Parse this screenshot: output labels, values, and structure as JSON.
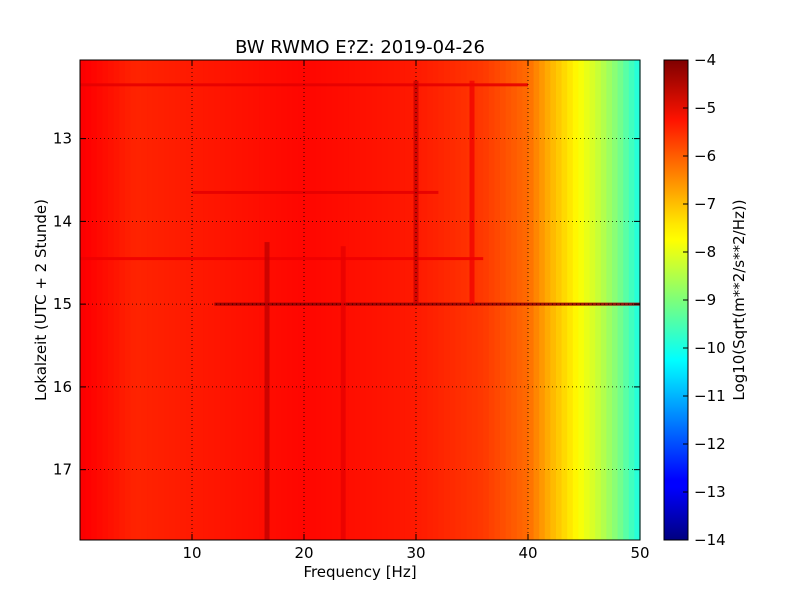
{
  "chart_data": {
    "type": "heatmap",
    "title": "BW RWMO E?Z: 2019-04-26",
    "xlabel": "Frequency [Hz]",
    "ylabel": "Lokalzeit (UTC + 2 Stunde)",
    "colorbar_label": "Log10(Sqrt(m**2/s**2/Hz))",
    "colormap": "jet",
    "xlim": [
      0,
      50
    ],
    "ylim": [
      17.85,
      12.05
    ],
    "clim": [
      -14,
      -4
    ],
    "x_ticks": [
      10,
      20,
      30,
      40,
      50
    ],
    "x_tick_labels": [
      "10",
      "20",
      "30",
      "40",
      "50"
    ],
    "y_ticks": [
      13,
      14,
      15,
      16,
      17
    ],
    "y_tick_labels": [
      "13",
      "14",
      "15",
      "16",
      "17"
    ],
    "colorbar_ticks": [
      -4,
      -5,
      -6,
      -7,
      -8,
      -9,
      -10,
      -11,
      -12,
      -13,
      -14
    ],
    "colorbar_tick_labels": [
      "−4",
      "−5",
      "−6",
      "−7",
      "−8",
      "−9",
      "−10",
      "−11",
      "−12",
      "−13",
      "−14"
    ],
    "grid": true,
    "spectrum_profile": [
      {
        "f": 0,
        "v": -5.2
      },
      {
        "f": 5,
        "v": -5.6
      },
      {
        "f": 10,
        "v": -5.5
      },
      {
        "f": 20,
        "v": -5.3
      },
      {
        "f": 30,
        "v": -5.5
      },
      {
        "f": 36,
        "v": -5.8
      },
      {
        "f": 40,
        "v": -6.3
      },
      {
        "f": 42,
        "v": -7.0
      },
      {
        "f": 44,
        "v": -7.6
      },
      {
        "f": 46,
        "v": -8.2
      },
      {
        "f": 48,
        "v": -9.0
      },
      {
        "f": 50,
        "v": -10.0
      }
    ],
    "vertical_bands": [
      {
        "freq": 16.7,
        "time_start": 14.25,
        "time_end": 17.85,
        "level": -4.6
      },
      {
        "freq": 23.5,
        "time_start": 14.3,
        "time_end": 17.85,
        "level": -5.0
      },
      {
        "freq": 30.0,
        "time_start": 12.3,
        "time_end": 15.0,
        "level": -4.7
      },
      {
        "freq": 35.0,
        "time_start": 12.3,
        "time_end": 15.0,
        "level": -5.1
      }
    ],
    "horizontal_bands": [
      {
        "time": 15.0,
        "freq_start": 12.0,
        "freq_end": 50.0,
        "level": -4.2
      },
      {
        "time": 12.35,
        "freq_start": 0.0,
        "freq_end": 40.0,
        "level": -5.0
      },
      {
        "time": 13.65,
        "freq_start": 10.0,
        "freq_end": 32.0,
        "level": -5.0
      },
      {
        "time": 14.45,
        "freq_start": 0.0,
        "freq_end": 36.0,
        "level": -5.1
      }
    ]
  }
}
